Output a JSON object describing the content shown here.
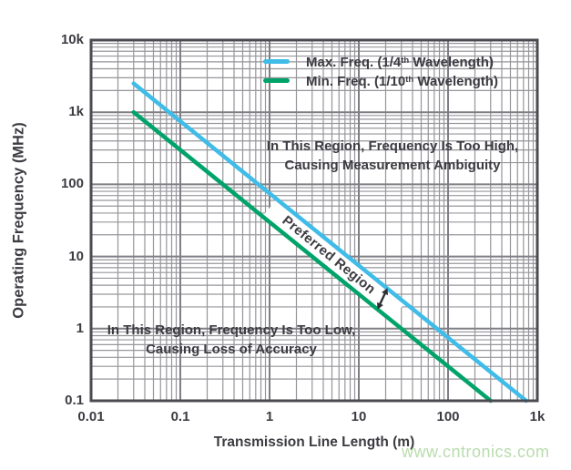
{
  "page": {
    "background": "#FFFFFF"
  },
  "watermark": {
    "text": "www.cntronics.com",
    "color": "#B9DCAD"
  },
  "colors": {
    "frame": "#4A4A50",
    "grid_major": "#7E7E84",
    "grid_minor": "#96969B",
    "text": "#3B3B41",
    "arrow": "#2E2E34",
    "band": "#FFFFFF"
  },
  "chart_data": {
    "type": "line",
    "title": "",
    "xlabel": "Transmission Line Length (m)",
    "ylabel": "Operating Frequency (MHz)",
    "x_scale": "log",
    "y_scale": "log",
    "xlim": [
      0.01,
      1000
    ],
    "ylim": [
      0.1,
      10000
    ],
    "x_ticks": [
      {
        "v": 0.01,
        "label": "0.01"
      },
      {
        "v": 0.1,
        "label": "0.1"
      },
      {
        "v": 1,
        "label": "1"
      },
      {
        "v": 10,
        "label": "10"
      },
      {
        "v": 100,
        "label": "100"
      },
      {
        "v": 1000,
        "label": "1k"
      }
    ],
    "y_ticks": [
      {
        "v": 10000,
        "label": "10k"
      },
      {
        "v": 1000,
        "label": "1k"
      },
      {
        "v": 100,
        "label": "100"
      },
      {
        "v": 10,
        "label": "10"
      },
      {
        "v": 1,
        "label": "1"
      },
      {
        "v": 0.1,
        "label": "0.1"
      }
    ],
    "grid": {
      "major": true,
      "minor": true
    },
    "legend": {
      "position": "top-right-inside",
      "items": [
        {
          "color": "#3FBCE8",
          "parts": [
            {
              "text": "Max. Freq. (1/4"
            },
            {
              "text": "th",
              "sup": true
            },
            {
              "text": " Wavelength)"
            }
          ]
        },
        {
          "color": "#00A369",
          "parts": [
            {
              "text": "Min. Freq. (1/10"
            },
            {
              "text": "th",
              "sup": true
            },
            {
              "text": " Wavelength)"
            }
          ]
        }
      ]
    },
    "series": [
      {
        "name": "Max. Freq. (1/4th Wavelength)",
        "color": "#3FBCE8",
        "points": [
          [
            0.03,
            2500
          ],
          [
            750,
            0.1
          ]
        ]
      },
      {
        "name": "Min. Freq. (1/10th Wavelength)",
        "color": "#00A369",
        "points": [
          [
            0.03,
            1000
          ],
          [
            300,
            0.1
          ]
        ]
      }
    ],
    "annotations": {
      "high": {
        "lines": [
          "In This Region, Frequency Is Too High,",
          "Causing Measurement Ambiguity"
        ]
      },
      "low": {
        "lines": [
          "In This Region, Frequency Is Too Low,",
          "Causing Loss of Accuracy"
        ]
      },
      "preferred": {
        "label": "Preferred Region"
      }
    }
  }
}
